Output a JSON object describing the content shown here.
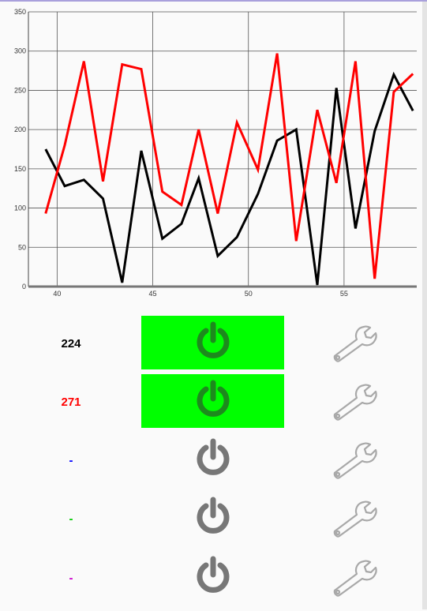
{
  "chart_data": {
    "type": "line",
    "xlim": [
      38.5,
      58.8
    ],
    "ylim": [
      0,
      350
    ],
    "x_ticks": [
      40,
      45,
      50,
      55
    ],
    "y_ticks": [
      0,
      50,
      100,
      150,
      200,
      250,
      300,
      350
    ],
    "grid": true,
    "series": [
      {
        "color": "#000000",
        "points": [
          [
            39.4,
            175
          ],
          [
            40.4,
            128
          ],
          [
            41.4,
            136
          ],
          [
            42.4,
            112
          ],
          [
            43.4,
            5
          ],
          [
            44.4,
            173
          ],
          [
            45.5,
            61
          ],
          [
            46.5,
            80
          ],
          [
            47.4,
            138
          ],
          [
            48.4,
            39
          ],
          [
            49.4,
            63
          ],
          [
            50.5,
            118
          ],
          [
            51.5,
            186
          ],
          [
            52.5,
            200
          ],
          [
            53.6,
            2
          ],
          [
            54.6,
            253
          ],
          [
            55.6,
            74
          ],
          [
            56.6,
            198
          ],
          [
            57.6,
            270
          ],
          [
            58.6,
            224
          ]
        ]
      },
      {
        "color": "#ff0000",
        "points": [
          [
            39.4,
            93
          ],
          [
            40.4,
            180
          ],
          [
            41.4,
            287
          ],
          [
            42.4,
            134
          ],
          [
            43.4,
            283
          ],
          [
            44.4,
            277
          ],
          [
            45.5,
            121
          ],
          [
            46.5,
            104
          ],
          [
            47.4,
            200
          ],
          [
            48.4,
            93
          ],
          [
            49.4,
            209
          ],
          [
            50.5,
            149
          ],
          [
            51.5,
            297
          ],
          [
            52.5,
            58
          ],
          [
            53.6,
            225
          ],
          [
            54.6,
            132
          ],
          [
            55.6,
            287
          ],
          [
            56.6,
            10
          ],
          [
            57.6,
            248
          ],
          [
            58.6,
            271
          ]
        ]
      }
    ]
  },
  "rows": [
    {
      "value": "224",
      "color": "#000000",
      "power_on": true,
      "power_icon": "power-icon",
      "settings_icon": "wrench-icon"
    },
    {
      "value": "271",
      "color": "#ff0000",
      "power_on": true,
      "power_icon": "power-icon",
      "settings_icon": "wrench-icon"
    },
    {
      "value": "-",
      "color": "#0000ff",
      "power_on": false,
      "power_icon": "power-icon",
      "settings_icon": "wrench-icon"
    },
    {
      "value": "-",
      "color": "#00cc00",
      "power_on": false,
      "power_icon": "power-icon",
      "settings_icon": "wrench-icon"
    },
    {
      "value": "-",
      "color": "#cc00cc",
      "power_on": false,
      "power_icon": "power-icon",
      "settings_icon": "wrench-icon"
    }
  ]
}
